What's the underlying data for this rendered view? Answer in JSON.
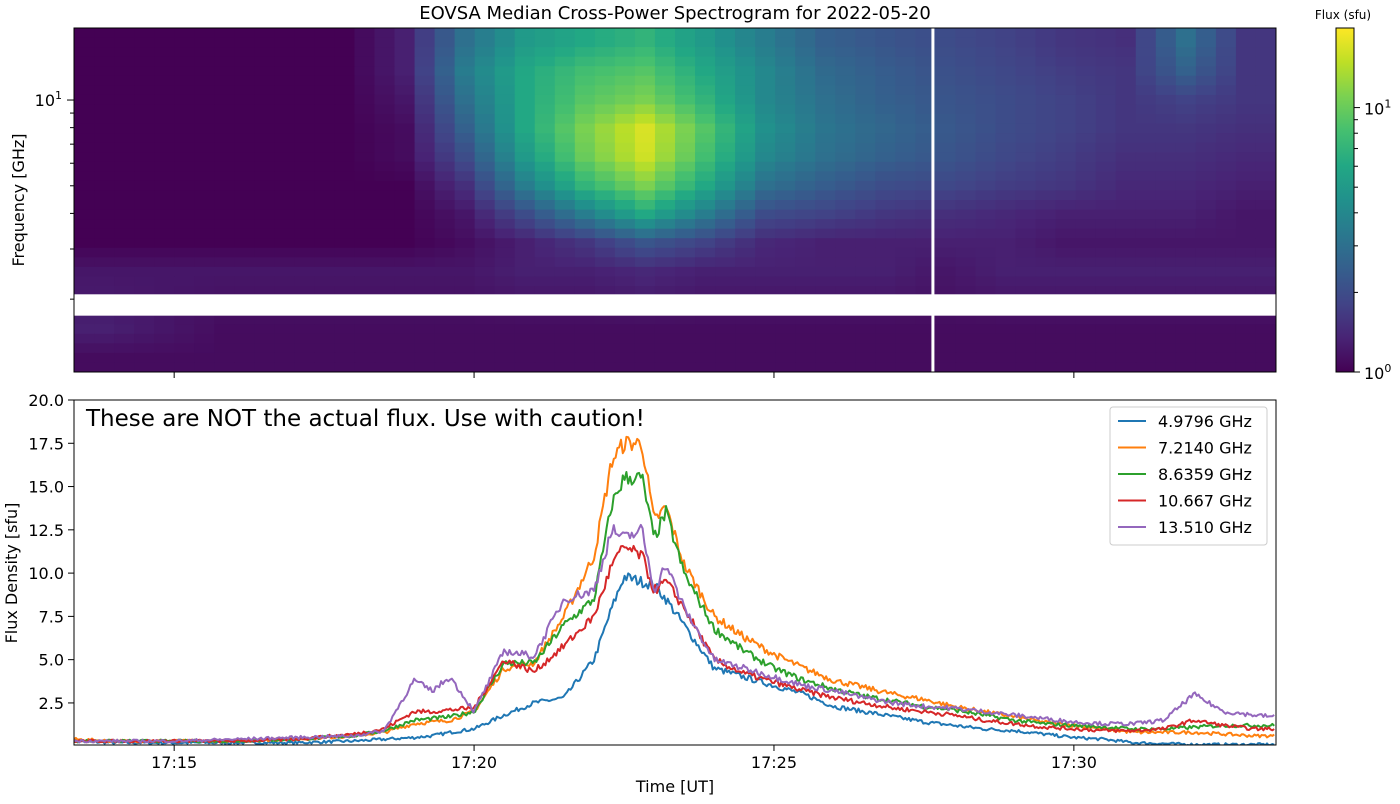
{
  "chart_data": [
    {
      "type": "heatmap",
      "title": "EOVSA Median Cross-Power Spectrogram for 2022-05-20",
      "ylabel": "Frequency [GHz]",
      "yscale": "log",
      "ylim_ghz": [
        1.11,
        17.9
      ],
      "xlim_min_after_1700": [
        13.33,
        33.37
      ],
      "x_ticks": [
        "17:15",
        "17:20",
        "17:25",
        "17:30"
      ],
      "x_tick_values_min": [
        15,
        20,
        25,
        30
      ],
      "y_tick_major": {
        "value": 10,
        "base": "10",
        "exp": "1"
      },
      "y_tick_minor": [
        2,
        3,
        4,
        5,
        6,
        7,
        8,
        9
      ],
      "colorbar": {
        "label": "Flux (sfu)",
        "scale": "log",
        "clim": [
          1,
          20
        ],
        "cmap": "viridis",
        "ticks": [
          {
            "value": 1,
            "base": "10",
            "exp": "0"
          },
          {
            "value": 10,
            "base": "10",
            "exp": "1"
          }
        ],
        "minor_ticks": [
          2,
          3,
          4,
          5,
          6,
          7,
          8,
          9
        ]
      },
      "freq_gap_ghz": [
        1.75,
        2.08
      ],
      "time_gap_min": 27.65,
      "time_bin_start_min": 13.33,
      "time_bin_width_min": 1.002,
      "freq_centers_ghz": [
        15.9,
        12.6,
        10.0,
        7.9,
        6.3,
        5.0,
        3.97,
        3.15,
        2.5,
        1.57,
        1.25
      ],
      "flux_sfu": [
        [
          1,
          1,
          1,
          1,
          1,
          1.3,
          3,
          5,
          6,
          7,
          5,
          3.5,
          2.5,
          2.2,
          2,
          1.8,
          1.6,
          1.5,
          3,
          1.6
        ],
        [
          1,
          1,
          1,
          1,
          1,
          1.3,
          3.5,
          6,
          8,
          9,
          6,
          4,
          2.8,
          2.4,
          2.1,
          1.9,
          1.7,
          1.6,
          2.5,
          1.6
        ],
        [
          1,
          1,
          1,
          1,
          1,
          1.2,
          3,
          6,
          9,
          11,
          7,
          4,
          3,
          2.5,
          2.2,
          2,
          1.8,
          1.6,
          1.8,
          1.6
        ],
        [
          1,
          1,
          1,
          1,
          1,
          1.1,
          2.5,
          6,
          11,
          17,
          9,
          4.5,
          3.2,
          2.7,
          2.3,
          2,
          1.8,
          1.6,
          1.6,
          1.5
        ],
        [
          1,
          1,
          1,
          1,
          1,
          1.1,
          2,
          5,
          10,
          16,
          8,
          4,
          3,
          2.5,
          2.2,
          1.9,
          1.7,
          1.5,
          1.5,
          1.4
        ],
        [
          1,
          1,
          1,
          1,
          1,
          1,
          1.5,
          3.5,
          7,
          11,
          6,
          3,
          2.4,
          2,
          1.9,
          1.7,
          1.6,
          1.4,
          1.4,
          1.3
        ],
        [
          1,
          1,
          1,
          1,
          1,
          1,
          1.2,
          2,
          3.5,
          6,
          3.5,
          2,
          1.8,
          1.6,
          1.5,
          1.4,
          1.3,
          1.3,
          1.3,
          1.2
        ],
        [
          1,
          1,
          1,
          1,
          1,
          1,
          1.1,
          1.3,
          1.6,
          2.2,
          1.8,
          1.4,
          1.3,
          1.3,
          1.3,
          1.3,
          1.2,
          1.2,
          1.2,
          1.2
        ],
        [
          1.2,
          1.2,
          1.2,
          1.2,
          1.2,
          1.2,
          1.2,
          1.3,
          1.3,
          1.4,
          1.3,
          1.3,
          1.3,
          1.3,
          1.2,
          1.3,
          1.3,
          1.3,
          1.3,
          1.3
        ],
        [
          1.3,
          1.2,
          1.1,
          1.1,
          1.1,
          1.1,
          1.1,
          1.1,
          1.1,
          1.1,
          1.1,
          1.1,
          1.1,
          1.1,
          1.1,
          1.1,
          1.1,
          1.1,
          1.1,
          1.1
        ],
        [
          1.1,
          1.1,
          1.1,
          1.1,
          1.1,
          1.1,
          1.1,
          1.1,
          1.1,
          1.1,
          1.1,
          1.1,
          1.1,
          1.1,
          1.1,
          1.1,
          1.1,
          1.1,
          1.1,
          1.1
        ]
      ]
    },
    {
      "type": "line",
      "xlabel": "Time [UT]",
      "ylabel": "Flux Density [sfu]",
      "ylim": [
        0.07,
        20
      ],
      "y_ticks": [
        "2.5",
        "5.0",
        "7.5",
        "10.0",
        "12.5",
        "15.0",
        "17.5",
        "20.0"
      ],
      "y_tick_values": [
        2.5,
        5,
        7.5,
        10,
        12.5,
        15,
        17.5,
        20
      ],
      "x_ticks": [
        "17:15",
        "17:20",
        "17:25",
        "17:30"
      ],
      "x_tick_values_min": [
        15,
        20,
        25,
        30
      ],
      "annotation": "These are NOT the actual flux. Use with caution!",
      "legend_position": "top-right",
      "x_min_after_1700": [
        13.33,
        14,
        15,
        16,
        17,
        18,
        18.5,
        19,
        19.3,
        19.6,
        20,
        20.5,
        21,
        21.5,
        22,
        22.3,
        22.5,
        22.8,
        23,
        23.2,
        23.5,
        24,
        24.5,
        25,
        25.5,
        26,
        26.5,
        27,
        27.5,
        28,
        28.5,
        29,
        29.5,
        30,
        30.5,
        31,
        31.5,
        32,
        32.5,
        33,
        33.37
      ],
      "series": [
        {
          "name": "4.9796 GHz",
          "color": "#1f77b4",
          "values": [
            0.3,
            0.2,
            0.2,
            0.2,
            0.2,
            0.3,
            0.4,
            0.5,
            0.6,
            0.8,
            1.0,
            1.8,
            2.5,
            2.8,
            5.0,
            8.0,
            9.8,
            9.5,
            9.3,
            8.5,
            7.0,
            4.5,
            4.0,
            3.5,
            3.0,
            2.3,
            2.0,
            1.7,
            1.4,
            1.2,
            1.0,
            0.9,
            0.7,
            0.5,
            0.4,
            0.2,
            0.15,
            0.1,
            0.1,
            0.1,
            0.1
          ]
        },
        {
          "name": "7.2140 GHz",
          "color": "#ff7f0e",
          "values": [
            0.4,
            0.3,
            0.3,
            0.3,
            0.4,
            0.6,
            0.8,
            1.3,
            1.4,
            1.5,
            2.0,
            4.5,
            4.8,
            7.5,
            11,
            16.5,
            17.5,
            17.5,
            13,
            13.8,
            10.5,
            7.5,
            6.3,
            5.3,
            4.5,
            3.8,
            3.4,
            3.0,
            2.7,
            2.3,
            2.0,
            1.7,
            1.4,
            1.2,
            1.0,
            0.8,
            0.8,
            0.8,
            0.7,
            0.6,
            0.6
          ]
        },
        {
          "name": "8.6359 GHz",
          "color": "#2ca02c",
          "values": [
            0.3,
            0.3,
            0.3,
            0.3,
            0.4,
            0.6,
            0.9,
            1.5,
            1.6,
            1.7,
            2.0,
            4.8,
            4.8,
            7.0,
            8.5,
            14,
            15.5,
            15.5,
            12,
            13.5,
            10,
            6.8,
            5.5,
            4.5,
            3.8,
            3.3,
            2.9,
            2.6,
            2.3,
            2.1,
            1.8,
            1.5,
            1.3,
            1.2,
            1.1,
            1.0,
            1.0,
            1.1,
            1.2,
            1.2,
            1.2
          ]
        },
        {
          "name": "10.667 GHz",
          "color": "#d62728",
          "values": [
            0.3,
            0.3,
            0.3,
            0.3,
            0.4,
            0.7,
            1.0,
            2.0,
            2.0,
            2.1,
            2.2,
            5.0,
            4.3,
            5.8,
            7.5,
            10.5,
            11.5,
            11.0,
            9.0,
            9.5,
            8.0,
            5.0,
            4.2,
            3.7,
            3.2,
            2.8,
            2.5,
            2.2,
            2.0,
            1.8,
            1.5,
            1.3,
            1.1,
            1.0,
            0.9,
            0.9,
            1.0,
            1.5,
            1.2,
            1.0,
            1.0
          ]
        },
        {
          "name": "13.510 GHz",
          "color": "#9467bd",
          "values": [
            0.3,
            0.3,
            0.3,
            0.4,
            0.5,
            0.6,
            0.9,
            3.8,
            3.2,
            4.0,
            2.0,
            5.5,
            5.2,
            8.5,
            9.0,
            12.5,
            12.0,
            12.5,
            9.0,
            10.5,
            8.0,
            5.0,
            4.5,
            4.0,
            3.5,
            3.2,
            2.8,
            2.5,
            2.3,
            2.2,
            2.0,
            1.8,
            1.6,
            1.4,
            1.3,
            1.3,
            1.5,
            3.0,
            2.0,
            1.8,
            1.7
          ]
        }
      ]
    }
  ]
}
